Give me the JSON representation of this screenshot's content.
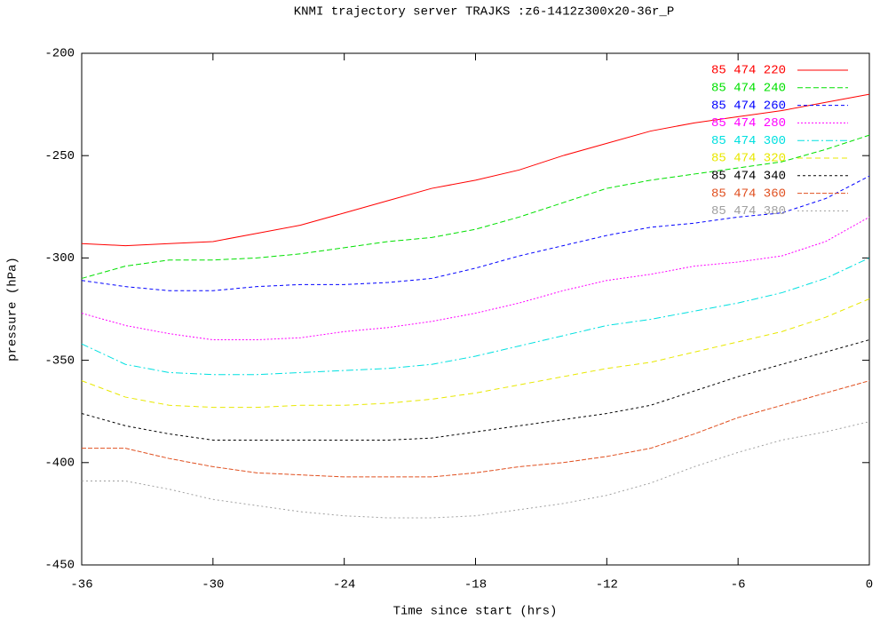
{
  "chart_data": {
    "type": "line",
    "title": "KNMI trajectory server TRAJKS :z6-1412z300x20-36r_P",
    "x_label": "Time since start (hrs)",
    "y_label": "pressure (hPa)",
    "x": [
      -36,
      -34,
      -32,
      -30,
      -28,
      -26,
      -24,
      -22,
      -20,
      -18,
      -16,
      -14,
      -12,
      -10,
      -8,
      -6,
      -4,
      -2,
      0
    ],
    "xlim": [
      -36,
      0
    ],
    "xticks": [
      -36,
      -30,
      -24,
      -18,
      -12,
      -6,
      0
    ],
    "ylim": [
      -450,
      -200
    ],
    "yticks": [
      -450,
      -400,
      -350,
      -300,
      -250,
      -200
    ],
    "grid": false,
    "legend": "top-right",
    "series": [
      {
        "name": "85 474 220",
        "color": "#ff0000",
        "values": [
          -293,
          -294,
          -293,
          -292,
          -288,
          -284,
          -278,
          -272,
          -266,
          -262,
          -257,
          -250,
          -244,
          -238,
          -234,
          -231,
          -228,
          -224,
          -220
        ]
      },
      {
        "name": "85 474 240",
        "color": "#00e000",
        "values": [
          -310,
          -304,
          -301,
          -301,
          -300,
          -298,
          -295,
          -292,
          -290,
          -286,
          -280,
          -273,
          -266,
          -262,
          -259,
          -256,
          -253,
          -247,
          -240
        ]
      },
      {
        "name": "85 474 260",
        "color": "#0000ff",
        "values": [
          -311,
          -314,
          -316,
          -316,
          -314,
          -313,
          -313,
          -312,
          -310,
          -305,
          -299,
          -294,
          -289,
          -285,
          -283,
          -280,
          -278,
          -271,
          -260
        ]
      },
      {
        "name": "85 474 280",
        "color": "#ff00ff",
        "values": [
          -327,
          -333,
          -337,
          -340,
          -340,
          -339,
          -336,
          -334,
          -331,
          -327,
          -322,
          -316,
          -311,
          -308,
          -304,
          -302,
          -299,
          -292,
          -280
        ]
      },
      {
        "name": "85 474 300",
        "color": "#00e0e0",
        "values": [
          -342,
          -352,
          -356,
          -357,
          -357,
          -356,
          -355,
          -354,
          -352,
          -348,
          -343,
          -338,
          -333,
          -330,
          -326,
          -322,
          -317,
          -310,
          -300
        ]
      },
      {
        "name": "85 474 320",
        "color": "#e8e800",
        "values": [
          -360,
          -368,
          -372,
          -373,
          -373,
          -372,
          -372,
          -371,
          -369,
          -366,
          -362,
          -358,
          -354,
          -351,
          -346,
          -341,
          -336,
          -329,
          -320
        ]
      },
      {
        "name": "85 474 340",
        "color": "#000000",
        "values": [
          -376,
          -382,
          -386,
          -389,
          -389,
          -389,
          -389,
          -389,
          -388,
          -385,
          -382,
          -379,
          -376,
          -372,
          -365,
          -358,
          -352,
          -346,
          -340
        ]
      },
      {
        "name": "85 474 360",
        "color": "#e05020",
        "values": [
          -393,
          -393,
          -398,
          -402,
          -405,
          -406,
          -407,
          -407,
          -407,
          -405,
          -402,
          -400,
          -397,
          -393,
          -386,
          -378,
          -372,
          -366,
          -360
        ]
      },
      {
        "name": "85 474 380",
        "color": "#a0a0a0",
        "values": [
          -409,
          -409,
          -413,
          -418,
          -421,
          -424,
          -426,
          -427,
          -427,
          -426,
          -423,
          -420,
          -416,
          -410,
          -402,
          -395,
          -389,
          -385,
          -380
        ]
      }
    ]
  }
}
